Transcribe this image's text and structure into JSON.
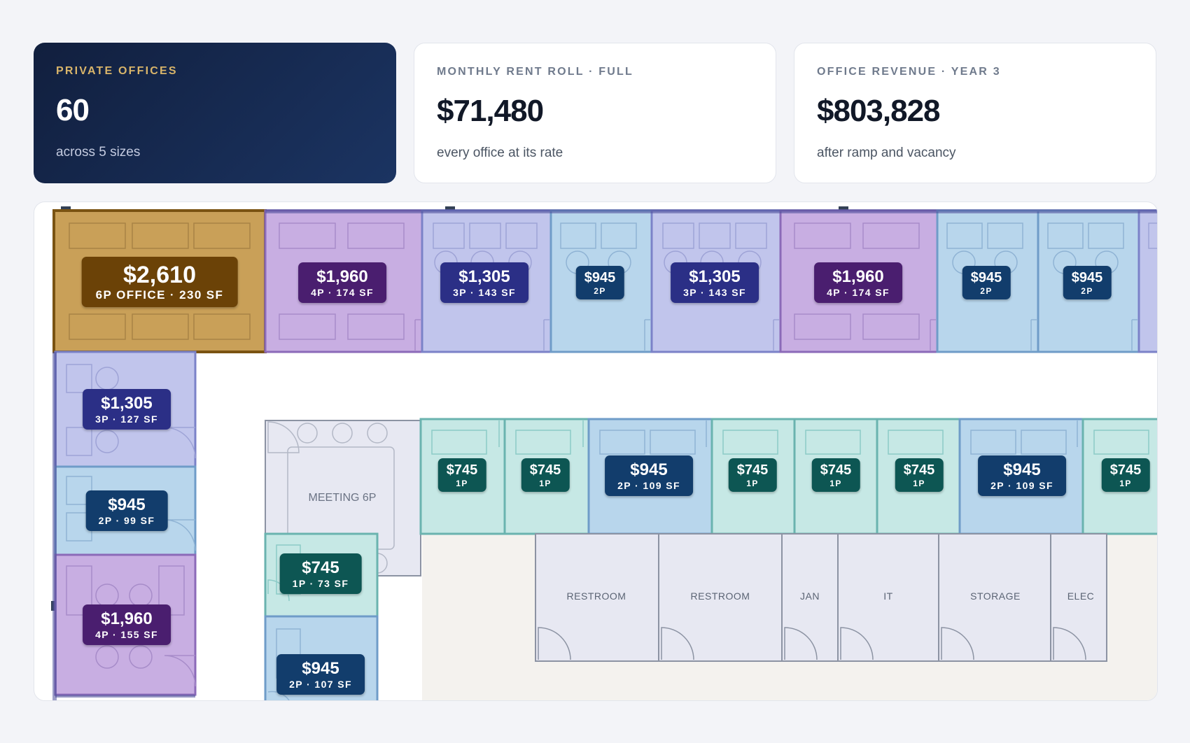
{
  "stats": {
    "private_offices": {
      "label": "PRIVATE OFFICES",
      "value": "60",
      "sub": "across 5 sizes"
    },
    "rent_roll": {
      "label": "MONTHLY RENT ROLL · FULL",
      "value": "$71,480",
      "sub": "every office at its rate"
    },
    "revenue": {
      "label": "OFFICE REVENUE · YEAR 3",
      "value": "$803,828",
      "sub": "after ramp and vacancy"
    }
  },
  "colors": {
    "gold": "#c9a058",
    "purple": "#c8aee2",
    "indigo": "#c1c5ec",
    "blue": "#b8d6ec",
    "teal": "#c6e8e5",
    "tag_gold": "#6b4207",
    "tag_purple": "#4a1e6f",
    "tag_indigo": "#2b2f86",
    "tag_blue": "#123d6c",
    "tag_teal": "#0d5653"
  },
  "offices": [
    {
      "price": "$2,610",
      "spec": "6P OFFICE · 230 SF",
      "size": "6P"
    },
    {
      "price": "$1,960",
      "spec": "4P · 174 SF",
      "size": "4P"
    },
    {
      "price": "$1,305",
      "spec": "3P · 143 SF",
      "size": "3P"
    },
    {
      "price": "$945",
      "spec": "2P",
      "size": "2P"
    },
    {
      "price": "$1,305",
      "spec": "3P · 143 SF",
      "size": "3P"
    },
    {
      "price": "$1,960",
      "spec": "4P · 174 SF",
      "size": "4P"
    },
    {
      "price": "$945",
      "spec": "2P",
      "size": "2P"
    },
    {
      "price": "$945",
      "spec": "2P",
      "size": "2P"
    },
    {
      "price": "$1,305",
      "spec": "3P · 127 SF",
      "size": "3P"
    },
    {
      "price": "$945",
      "spec": "2P · 99 SF",
      "size": "2P"
    },
    {
      "price": "$1,960",
      "spec": "4P · 155 SF",
      "size": "4P"
    },
    {
      "price": "$745",
      "spec": "1P · 73 SF",
      "size": "1P"
    },
    {
      "price": "$945",
      "spec": "2P · 107 SF",
      "size": "2P"
    },
    {
      "price": "$745",
      "spec": "1P",
      "size": "1P"
    },
    {
      "price": "$745",
      "spec": "1P",
      "size": "1P"
    },
    {
      "price": "$945",
      "spec": "2P · 109 SF",
      "size": "2P"
    },
    {
      "price": "$745",
      "spec": "1P",
      "size": "1P"
    },
    {
      "price": "$745",
      "spec": "1P",
      "size": "1P"
    },
    {
      "price": "$745",
      "spec": "1P",
      "size": "1P"
    },
    {
      "price": "$945",
      "spec": "2P · 109 SF",
      "size": "2P"
    },
    {
      "price": "$745",
      "spec": "1P",
      "size": "1P"
    }
  ],
  "rooms": {
    "meeting": "MEETING 6P",
    "restroom_1": "RESTROOM",
    "restroom_2": "RESTROOM",
    "janitor": "JAN",
    "it": "IT",
    "storage": "STORAGE",
    "electrical": "ELEC"
  }
}
